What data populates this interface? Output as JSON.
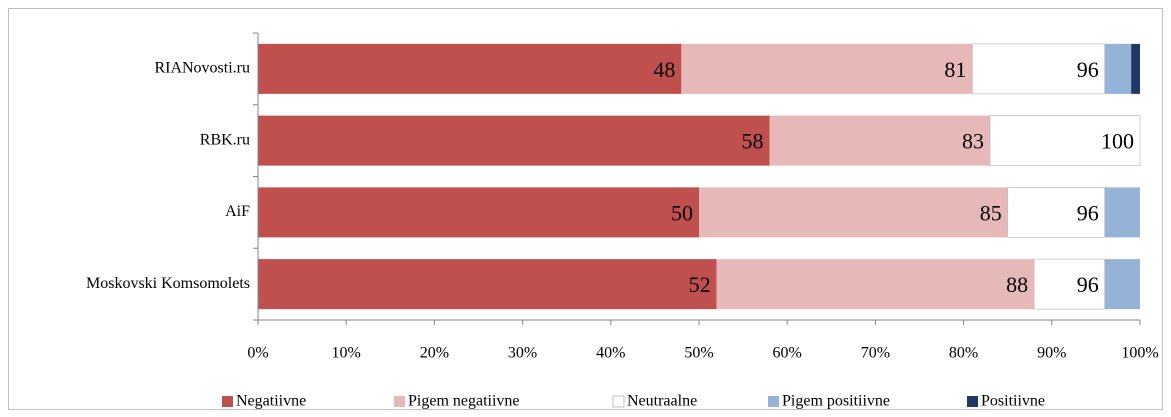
{
  "chart_data": {
    "type": "stacked-bar-horizontal",
    "categories": [
      "RIANovosti.ru",
      "RBK.ru",
      "AiF",
      "Moskovski Komsomolets"
    ],
    "series": [
      {
        "name": "Negatiivne",
        "color": "#c0504d",
        "values": [
          48,
          58,
          50,
          52
        ]
      },
      {
        "name": "Pigem negatiivne",
        "color": "#e6b9b8",
        "values": [
          33,
          25,
          35,
          36
        ]
      },
      {
        "name": "Neutraalne",
        "color": "#ffffff",
        "values": [
          15,
          17,
          11,
          8
        ]
      },
      {
        "name": "Pigem positiivne",
        "color": "#95b3d7",
        "values": [
          3,
          0,
          4,
          4
        ]
      },
      {
        "name": "Positiivne",
        "color": "#1f3864",
        "values": [
          1,
          0,
          0,
          0
        ]
      }
    ],
    "cumulative_labels": [
      [
        "48",
        "81",
        "96"
      ],
      [
        "58",
        "83",
        "100"
      ],
      [
        "50",
        "85",
        "96"
      ],
      [
        "52",
        "88",
        "96"
      ]
    ],
    "xlim": [
      0,
      100
    ],
    "xticks": [
      {
        "value": 0,
        "label": "0%"
      },
      {
        "value": 10,
        "label": "10%"
      },
      {
        "value": 20,
        "label": "20%"
      },
      {
        "value": 30,
        "label": "30%"
      },
      {
        "value": 40,
        "label": "40%"
      },
      {
        "value": 50,
        "label": "50%"
      },
      {
        "value": 60,
        "label": "60%"
      },
      {
        "value": 70,
        "label": "70%"
      },
      {
        "value": 80,
        "label": "80%"
      },
      {
        "value": 90,
        "label": "90%"
      },
      {
        "value": 100,
        "label": "100%"
      }
    ],
    "legend": "bottom"
  }
}
